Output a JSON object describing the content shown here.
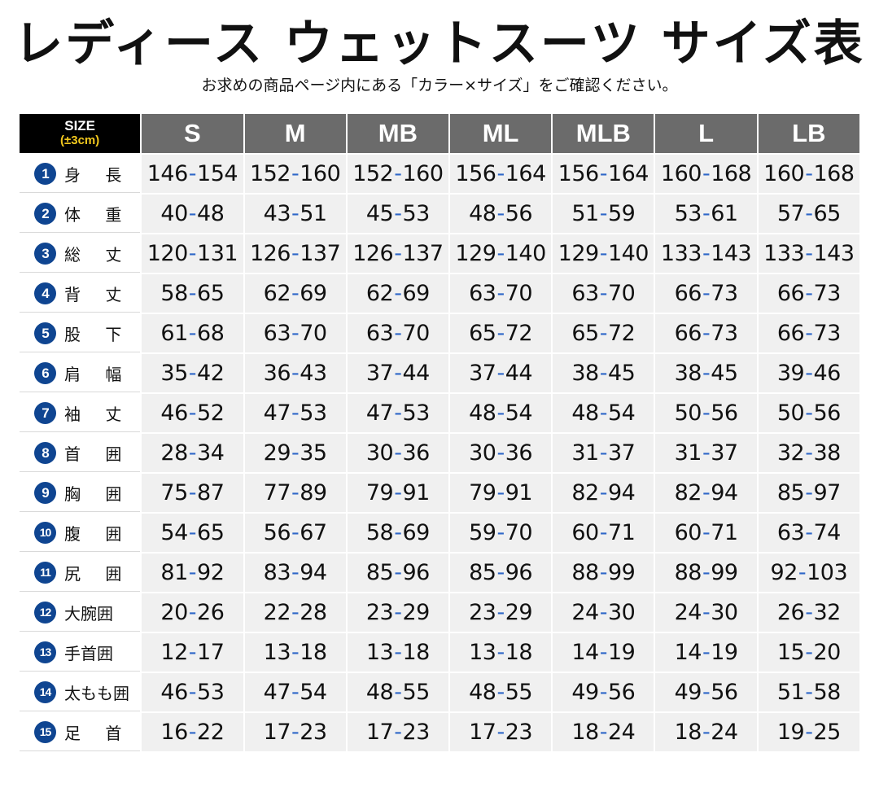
{
  "header": {
    "title": "レディース ウェットスーツ サイズ表",
    "subtitle": "お求めの商品ページ内にある「カラー×サイズ」をご確認ください。"
  },
  "table": {
    "corner": {
      "size_word": "SIZE",
      "tolerance": "(±3cm)"
    },
    "sizes": [
      "S",
      "M",
      "MB",
      "ML",
      "MLB",
      "L",
      "LB"
    ],
    "rows": [
      {
        "num": "1",
        "name": "身 長",
        "values": [
          [
            "146",
            "154"
          ],
          [
            "152",
            "160"
          ],
          [
            "152",
            "160"
          ],
          [
            "156",
            "164"
          ],
          [
            "156",
            "164"
          ],
          [
            "160",
            "168"
          ],
          [
            "160",
            "168"
          ]
        ]
      },
      {
        "num": "2",
        "name": "体 重",
        "values": [
          [
            "40",
            "48"
          ],
          [
            "43",
            "51"
          ],
          [
            "45",
            "53"
          ],
          [
            "48",
            "56"
          ],
          [
            "51",
            "59"
          ],
          [
            "53",
            "61"
          ],
          [
            "57",
            "65"
          ]
        ]
      },
      {
        "num": "3",
        "name": "総 丈",
        "values": [
          [
            "120",
            "131"
          ],
          [
            "126",
            "137"
          ],
          [
            "126",
            "137"
          ],
          [
            "129",
            "140"
          ],
          [
            "129",
            "140"
          ],
          [
            "133",
            "143"
          ],
          [
            "133",
            "143"
          ]
        ]
      },
      {
        "num": "4",
        "name": "背 丈",
        "values": [
          [
            "58",
            "65"
          ],
          [
            "62",
            "69"
          ],
          [
            "62",
            "69"
          ],
          [
            "63",
            "70"
          ],
          [
            "63",
            "70"
          ],
          [
            "66",
            "73"
          ],
          [
            "66",
            "73"
          ]
        ]
      },
      {
        "num": "5",
        "name": "股 下",
        "values": [
          [
            "61",
            "68"
          ],
          [
            "63",
            "70"
          ],
          [
            "63",
            "70"
          ],
          [
            "65",
            "72"
          ],
          [
            "65",
            "72"
          ],
          [
            "66",
            "73"
          ],
          [
            "66",
            "73"
          ]
        ]
      },
      {
        "num": "6",
        "name": "肩 幅",
        "values": [
          [
            "35",
            "42"
          ],
          [
            "36",
            "43"
          ],
          [
            "37",
            "44"
          ],
          [
            "37",
            "44"
          ],
          [
            "38",
            "45"
          ],
          [
            "38",
            "45"
          ],
          [
            "39",
            "46"
          ]
        ]
      },
      {
        "num": "7",
        "name": "袖 丈",
        "values": [
          [
            "46",
            "52"
          ],
          [
            "47",
            "53"
          ],
          [
            "47",
            "53"
          ],
          [
            "48",
            "54"
          ],
          [
            "48",
            "54"
          ],
          [
            "50",
            "56"
          ],
          [
            "50",
            "56"
          ]
        ]
      },
      {
        "num": "8",
        "name": "首 囲",
        "values": [
          [
            "28",
            "34"
          ],
          [
            "29",
            "35"
          ],
          [
            "30",
            "36"
          ],
          [
            "30",
            "36"
          ],
          [
            "31",
            "37"
          ],
          [
            "31",
            "37"
          ],
          [
            "32",
            "38"
          ]
        ]
      },
      {
        "num": "9",
        "name": "胸 囲",
        "values": [
          [
            "75",
            "87"
          ],
          [
            "77",
            "89"
          ],
          [
            "79",
            "91"
          ],
          [
            "79",
            "91"
          ],
          [
            "82",
            "94"
          ],
          [
            "82",
            "94"
          ],
          [
            "85",
            "97"
          ]
        ]
      },
      {
        "num": "10",
        "name": "腹 囲",
        "values": [
          [
            "54",
            "65"
          ],
          [
            "56",
            "67"
          ],
          [
            "58",
            "69"
          ],
          [
            "59",
            "70"
          ],
          [
            "60",
            "71"
          ],
          [
            "60",
            "71"
          ],
          [
            "63",
            "74"
          ]
        ]
      },
      {
        "num": "11",
        "name": "尻 囲",
        "values": [
          [
            "81",
            "92"
          ],
          [
            "83",
            "94"
          ],
          [
            "85",
            "96"
          ],
          [
            "85",
            "96"
          ],
          [
            "88",
            "99"
          ],
          [
            "88",
            "99"
          ],
          [
            "92",
            "103"
          ]
        ]
      },
      {
        "num": "12",
        "name": "大腕囲",
        "values": [
          [
            "20",
            "26"
          ],
          [
            "22",
            "28"
          ],
          [
            "23",
            "29"
          ],
          [
            "23",
            "29"
          ],
          [
            "24",
            "30"
          ],
          [
            "24",
            "30"
          ],
          [
            "26",
            "32"
          ]
        ]
      },
      {
        "num": "13",
        "name": "手首囲",
        "values": [
          [
            "12",
            "17"
          ],
          [
            "13",
            "18"
          ],
          [
            "13",
            "18"
          ],
          [
            "13",
            "18"
          ],
          [
            "14",
            "19"
          ],
          [
            "14",
            "19"
          ],
          [
            "15",
            "20"
          ]
        ]
      },
      {
        "num": "14",
        "name": "太もも囲",
        "values": [
          [
            "46",
            "53"
          ],
          [
            "47",
            "54"
          ],
          [
            "48",
            "55"
          ],
          [
            "48",
            "55"
          ],
          [
            "49",
            "56"
          ],
          [
            "49",
            "56"
          ],
          [
            "51",
            "58"
          ]
        ]
      },
      {
        "num": "15",
        "name": "足 首",
        "values": [
          [
            "16",
            "22"
          ],
          [
            "17",
            "23"
          ],
          [
            "17",
            "23"
          ],
          [
            "17",
            "23"
          ],
          [
            "18",
            "24"
          ],
          [
            "18",
            "24"
          ],
          [
            "19",
            "25"
          ]
        ]
      }
    ],
    "separator": "-"
  },
  "colors": {
    "header_black": "#000000",
    "header_gray": "#6b6b6b",
    "tolerance_yellow": "#f2c81e",
    "badge_blue": "#0f4591",
    "dash_blue": "#2f67c8",
    "cell_bg": "#f0f0f0"
  }
}
